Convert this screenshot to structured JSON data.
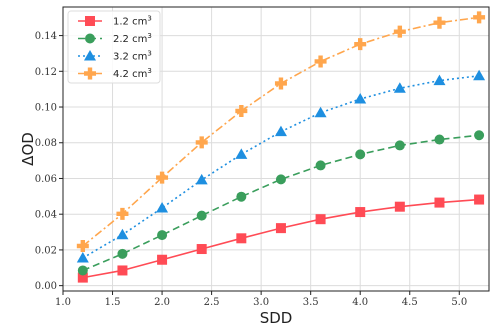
{
  "chart_data": {
    "type": "line",
    "xlabel": "SDD",
    "ylabel": "ΔOD",
    "xlim": [
      1.0,
      5.3
    ],
    "ylim": [
      -0.003,
      0.156
    ],
    "xticks": [
      1.0,
      1.5,
      2.0,
      2.5,
      3.0,
      3.5,
      4.0,
      4.5,
      5.0
    ],
    "yticks": [
      0.0,
      0.02,
      0.04,
      0.06,
      0.08,
      0.1,
      0.12,
      0.14
    ],
    "grid": true,
    "legend_position": "top-left",
    "x": [
      1.2,
      1.6,
      2.0,
      2.4,
      2.8,
      3.2,
      3.6,
      4.0,
      4.4,
      4.8,
      5.2
    ],
    "series": [
      {
        "name": "1.2 cm",
        "unit_superscript": "3",
        "color": "#ff4b55",
        "marker": "square",
        "linestyle": "solid",
        "values": [
          0.0045,
          0.0085,
          0.0145,
          0.0205,
          0.0265,
          0.0322,
          0.0372,
          0.0412,
          0.0442,
          0.0465,
          0.0482
        ]
      },
      {
        "name": "2.2 cm",
        "unit_superscript": "3",
        "color": "#3a9e5c",
        "marker": "circle",
        "linestyle": "dashed",
        "values": [
          0.0085,
          0.0178,
          0.0283,
          0.0392,
          0.0498,
          0.0595,
          0.0673,
          0.0735,
          0.0785,
          0.0818,
          0.0842
        ]
      },
      {
        "name": "3.2 cm",
        "unit_superscript": "3",
        "color": "#1e8fe0",
        "marker": "triangle",
        "linestyle": "dotted",
        "values": [
          0.0155,
          0.0285,
          0.0435,
          0.0592,
          0.0735,
          0.0862,
          0.0968,
          0.1045,
          0.1105,
          0.1148,
          0.1175
        ]
      },
      {
        "name": "4.2 cm",
        "unit_superscript": "3",
        "color": "#ffa64d",
        "marker": "plus",
        "linestyle": "dashdot",
        "values": [
          0.0222,
          0.0402,
          0.0605,
          0.0802,
          0.0978,
          0.1132,
          0.1255,
          0.1352,
          0.1422,
          0.1472,
          0.1502
        ]
      }
    ]
  }
}
